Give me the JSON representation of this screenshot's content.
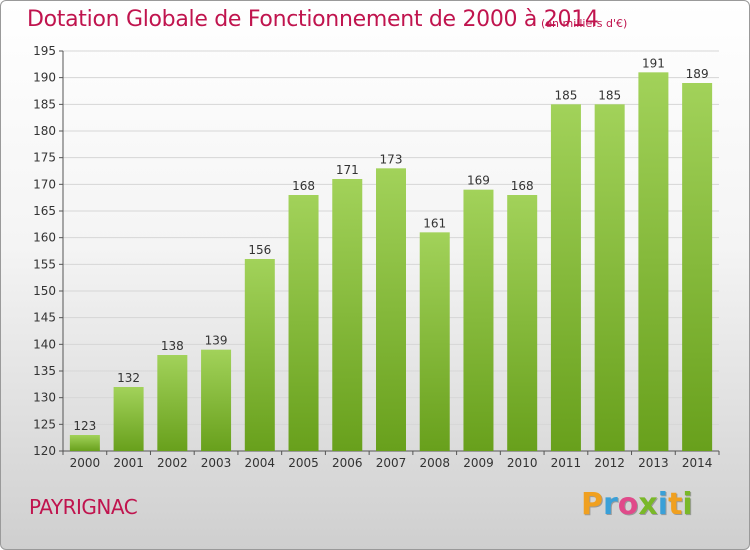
{
  "header": {
    "title": "Dotation Globale de Fonctionnement de 2000 à 2014",
    "unit": "(en milliers d'€)"
  },
  "footer": {
    "place": "PAYRIGNAC",
    "logo_text": "Proxiti"
  },
  "colors": {
    "accent": "#c0144e",
    "bar_light": "#a2d25a",
    "bar_dark": "#68a01c",
    "logo_letters": [
      "#f0a020",
      "#3aa0d8",
      "#e04a8a",
      "#7ab828",
      "#3aa0d8",
      "#f0a020",
      "#7ab828"
    ]
  },
  "chart_data": {
    "type": "bar",
    "title": "Dotation Globale de Fonctionnement de 2000 à 2014",
    "subtitle": "(en milliers d'€)",
    "xlabel": "",
    "ylabel": "",
    "ylim": [
      120,
      195
    ],
    "yticks": [
      120,
      125,
      130,
      135,
      140,
      145,
      150,
      155,
      160,
      165,
      170,
      175,
      180,
      185,
      190,
      195
    ],
    "grid": true,
    "categories": [
      "2000",
      "2001",
      "2002",
      "2003",
      "2004",
      "2005",
      "2006",
      "2007",
      "2008",
      "2009",
      "2010",
      "2011",
      "2012",
      "2013",
      "2014"
    ],
    "values": [
      123,
      132,
      138,
      139,
      156,
      168,
      171,
      173,
      161,
      169,
      168,
      185,
      185,
      191,
      189
    ]
  }
}
